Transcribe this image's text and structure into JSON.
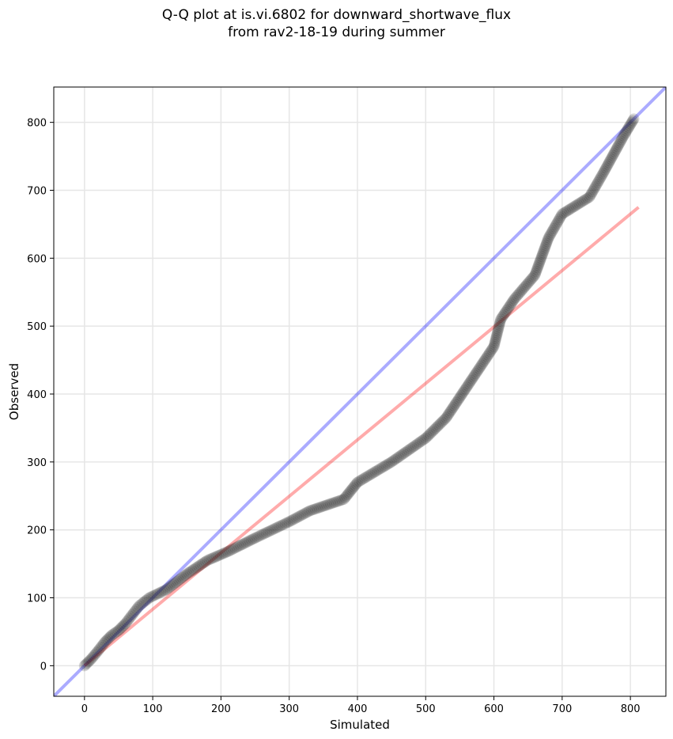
{
  "chart_data": {
    "type": "scatter",
    "title_line1": "Q-Q plot at is.vi.6802 for downward_shortwave_flux",
    "title_line2": "from rav2-18-19 during summer",
    "xlabel": "Simulated",
    "ylabel": "Observed",
    "xlim": [
      -45,
      852
    ],
    "ylim": [
      -45,
      852
    ],
    "xticks": [
      0,
      100,
      200,
      300,
      400,
      500,
      600,
      700,
      800
    ],
    "yticks": [
      0,
      100,
      200,
      300,
      400,
      500,
      600,
      700,
      800
    ],
    "grid": true,
    "quantiles": {
      "x": [
        0,
        10,
        20,
        30,
        40,
        50,
        60,
        70,
        80,
        95,
        120,
        150,
        180,
        210,
        250,
        300,
        330,
        380,
        400,
        450,
        500,
        530,
        560,
        580,
        600,
        610,
        630,
        660,
        680,
        700,
        740,
        760,
        790,
        805
      ],
      "y": [
        0,
        10,
        22,
        35,
        45,
        52,
        62,
        75,
        88,
        100,
        112,
        135,
        155,
        168,
        188,
        212,
        228,
        245,
        270,
        300,
        335,
        365,
        410,
        440,
        470,
        510,
        540,
        575,
        630,
        665,
        690,
        725,
        780,
        805
      ]
    },
    "reference_line": {
      "name": "1:1 line",
      "color": "#0000ff",
      "x": [
        -45,
        852
      ],
      "y": [
        -45,
        852
      ]
    },
    "fit_line": {
      "name": "fit line",
      "color": "#ff0000",
      "x": [
        0,
        812
      ],
      "y": [
        0,
        675
      ]
    },
    "point_color": "#222222"
  }
}
